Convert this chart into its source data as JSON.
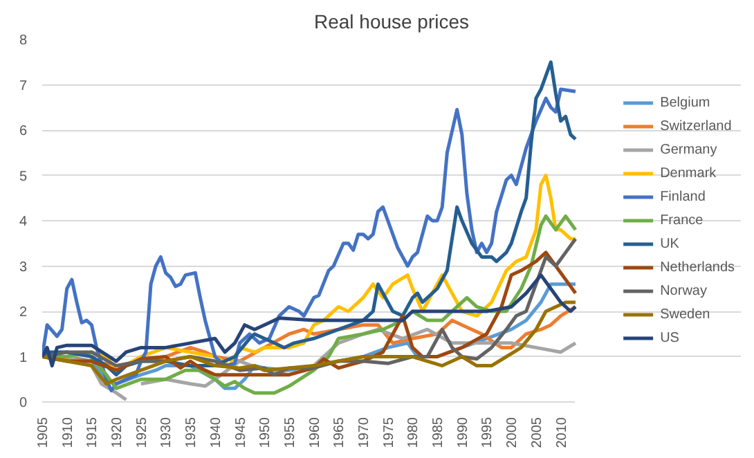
{
  "chart_data": {
    "type": "line",
    "title": "Real house prices",
    "xlim": [
      1905,
      2013
    ],
    "ylim": [
      0,
      8
    ],
    "xticks": [
      1905,
      1910,
      1915,
      1920,
      1925,
      1930,
      1935,
      1940,
      1945,
      1950,
      1955,
      1960,
      1965,
      1970,
      1975,
      1980,
      1985,
      1990,
      1995,
      2000,
      2005,
      2010
    ],
    "yticks": [
      0,
      1,
      2,
      3,
      4,
      5,
      6,
      7,
      8
    ],
    "grid": "y",
    "legend": "right",
    "marker": "none",
    "line_style": "solid",
    "series": [
      {
        "name": "Belgium",
        "color": "#5b9bd5",
        "x": [
          1905,
          1910,
          1915,
          1918,
          1920,
          1925,
          1928,
          1930,
          1935,
          1940,
          1942,
          1944,
          1946,
          1948,
          1950,
          1955,
          1960,
          1965,
          1970,
          1975,
          1979,
          1981,
          1985,
          1990,
          1995,
          2000,
          2003,
          2006,
          2008,
          2010,
          2013
        ],
        "values": [
          1.0,
          1.0,
          0.9,
          0.5,
          0.4,
          0.6,
          0.7,
          0.8,
          0.8,
          0.5,
          0.3,
          0.3,
          0.5,
          0.8,
          0.75,
          0.7,
          0.8,
          0.9,
          1.0,
          1.2,
          1.3,
          1.0,
          1.0,
          1.2,
          1.4,
          1.6,
          1.8,
          2.2,
          2.6,
          2.6,
          2.6
        ]
      },
      {
        "name": "Switzerland",
        "color": "#ed7d31",
        "x": [
          1905,
          1910,
          1915,
          1920,
          1925,
          1930,
          1935,
          1938,
          1940,
          1945,
          1950,
          1955,
          1958,
          1960,
          1965,
          1970,
          1973,
          1976,
          1980,
          1985,
          1988,
          1990,
          1994,
          1998,
          2000,
          2003,
          2006,
          2008,
          2010,
          2013
        ],
        "values": [
          1.0,
          0.95,
          0.9,
          0.8,
          0.9,
          1.0,
          1.2,
          1.1,
          1.0,
          0.9,
          1.2,
          1.5,
          1.6,
          1.5,
          1.6,
          1.7,
          1.7,
          1.3,
          1.4,
          1.5,
          1.8,
          1.7,
          1.5,
          1.2,
          1.2,
          1.5,
          1.6,
          1.7,
          1.9,
          2.1
        ]
      },
      {
        "name": "Germany",
        "color": "#a5a5a5",
        "x": [
          1905,
          1910,
          1915,
          1917,
          1920,
          1922,
          1924,
          1925,
          1930,
          1935,
          1938,
          1940,
          1945,
          1950,
          1955,
          1960,
          1965,
          1970,
          1973,
          1978,
          1983,
          1988,
          1993,
          2000,
          2005,
          2010,
          2013
        ],
        "values": [
          1.0,
          1.0,
          0.8,
          0.4,
          0.2,
          0.05,
          null,
          0.4,
          0.5,
          0.4,
          0.35,
          0.5,
          0.9,
          0.7,
          0.6,
          0.8,
          1.3,
          1.5,
          1.6,
          1.4,
          1.6,
          1.3,
          1.3,
          1.3,
          1.2,
          1.1,
          1.3
        ]
      },
      {
        "name": "Denmark",
        "color": "#ffc000",
        "x": [
          1905,
          1910,
          1915,
          1918,
          1920,
          1925,
          1930,
          1935,
          1940,
          1943,
          1945,
          1948,
          1950,
          1955,
          1958,
          1960,
          1962,
          1965,
          1967,
          1970,
          1972,
          1974,
          1976,
          1979,
          1980,
          1982,
          1984,
          1986,
          1988,
          1990,
          1993,
          1996,
          1999,
          2001,
          2003,
          2005,
          2006,
          2007,
          2008,
          2009,
          2010,
          2012,
          2013
        ],
        "values": [
          1.0,
          1.0,
          1.1,
          1.0,
          0.7,
          1.0,
          1.2,
          1.1,
          1.0,
          0.8,
          1.2,
          1.1,
          1.2,
          1.2,
          1.3,
          1.7,
          1.8,
          2.1,
          2.0,
          2.3,
          2.6,
          2.3,
          2.6,
          2.8,
          2.5,
          2.0,
          2.4,
          2.8,
          2.4,
          2.0,
          1.9,
          2.2,
          2.9,
          3.1,
          3.2,
          3.8,
          4.8,
          5.0,
          4.5,
          3.8,
          3.8,
          3.6,
          3.6
        ]
      },
      {
        "name": "Finland",
        "color": "#4472c4",
        "x": [
          1905,
          1906,
          1908,
          1909,
          1910,
          1911,
          1912,
          1913,
          1914,
          1915,
          1916,
          1918,
          1919,
          1920,
          1922,
          1924,
          1925,
          1926,
          1927,
          1928,
          1929,
          1930,
          1931,
          1932,
          1933,
          1934,
          1936,
          1937,
          1938,
          1939,
          1940,
          1942,
          1944,
          1945,
          1947,
          1949,
          1951,
          1953,
          1955,
          1957,
          1958,
          1960,
          1961,
          1963,
          1964,
          1966,
          1967,
          1968,
          1969,
          1970,
          1971,
          1972,
          1973,
          1974,
          1975,
          1977,
          1979,
          1980,
          1981,
          1983,
          1984,
          1985,
          1986,
          1987,
          1989,
          1990,
          1991,
          1992,
          1993,
          1994,
          1995,
          1996,
          1997,
          1999,
          2000,
          2001,
          2003,
          2005,
          2007,
          2008,
          2009,
          2010,
          2013
        ],
        "values": [
          1.0,
          1.7,
          1.45,
          1.6,
          2.5,
          2.7,
          2.2,
          1.75,
          1.8,
          1.7,
          1.2,
          0.5,
          0.25,
          0.4,
          0.5,
          0.6,
          0.9,
          1.1,
          2.6,
          3.0,
          3.2,
          2.85,
          2.75,
          2.55,
          2.6,
          2.8,
          2.85,
          2.3,
          1.8,
          1.4,
          1.0,
          0.8,
          0.85,
          1.3,
          1.5,
          1.3,
          1.4,
          1.9,
          2.1,
          2.0,
          1.9,
          2.3,
          2.35,
          2.9,
          3.0,
          3.5,
          3.5,
          3.35,
          3.7,
          3.7,
          3.6,
          3.7,
          4.2,
          4.3,
          4.0,
          3.4,
          3.0,
          3.2,
          3.3,
          4.1,
          4.0,
          4.0,
          4.3,
          5.5,
          6.45,
          5.9,
          4.6,
          3.8,
          3.3,
          3.5,
          3.3,
          3.5,
          4.2,
          4.9,
          5.0,
          4.8,
          5.6,
          6.2,
          6.7,
          6.5,
          6.4,
          6.9,
          6.85
        ]
      },
      {
        "name": "France",
        "color": "#70ad47",
        "x": [
          1905,
          1910,
          1914,
          1918,
          1920,
          1925,
          1930,
          1934,
          1937,
          1940,
          1942,
          1944,
          1946,
          1948,
          1952,
          1955,
          1960,
          1963,
          1965,
          1970,
          1974,
          1978,
          1980,
          1983,
          1986,
          1989,
          1991,
          1993,
          1996,
          1999,
          2002,
          2004,
          2006,
          2007,
          2009,
          2011,
          2013
        ],
        "values": [
          1.0,
          1.0,
          1.1,
          0.6,
          0.3,
          0.5,
          0.5,
          0.7,
          0.7,
          0.5,
          0.35,
          0.45,
          0.3,
          0.2,
          0.2,
          0.35,
          0.7,
          1.0,
          1.4,
          1.5,
          1.6,
          1.8,
          2.0,
          1.8,
          1.8,
          2.1,
          2.3,
          2.1,
          2.0,
          2.0,
          2.5,
          3.0,
          3.9,
          4.1,
          3.8,
          4.1,
          3.8
        ]
      },
      {
        "name": "UK",
        "color": "#255e91",
        "x": [
          1905,
          1906,
          1910,
          1915,
          1918,
          1920,
          1922,
          1925,
          1930,
          1935,
          1940,
          1944,
          1947,
          1948,
          1950,
          1952,
          1954,
          1956,
          1960,
          1965,
          1970,
          1972,
          1973,
          1974,
          1976,
          1978,
          1980,
          1981,
          1982,
          1985,
          1987,
          1988,
          1989,
          1990,
          1992,
          1994,
          1996,
          1997,
          1999,
          2000,
          2002,
          2003,
          2004,
          2005,
          2006,
          2007,
          2008,
          2009,
          2010,
          2011,
          2012,
          2013
        ],
        "values": [
          1.0,
          1.1,
          1.1,
          1.0,
          0.8,
          0.6,
          0.8,
          0.9,
          0.9,
          0.8,
          0.8,
          1.0,
          1.4,
          1.5,
          1.4,
          1.3,
          1.2,
          1.3,
          1.4,
          1.6,
          1.8,
          2.0,
          2.6,
          2.4,
          2.0,
          1.9,
          2.3,
          2.4,
          2.2,
          2.5,
          2.9,
          3.6,
          4.3,
          4.0,
          3.5,
          3.2,
          3.2,
          3.1,
          3.3,
          3.5,
          4.2,
          4.5,
          5.7,
          6.7,
          6.9,
          7.2,
          7.5,
          6.8,
          6.2,
          6.3,
          5.9,
          5.8
        ]
      },
      {
        "name": "Netherlands",
        "color": "#9e480e",
        "x": [
          1905,
          1910,
          1915,
          1920,
          1925,
          1930,
          1933,
          1935,
          1937,
          1940,
          1945,
          1950,
          1955,
          1960,
          1962,
          1965,
          1970,
          1974,
          1976,
          1978,
          1980,
          1982,
          1985,
          1990,
          1995,
          1998,
          2000,
          2002,
          2005,
          2007,
          2009,
          2011,
          2013
        ],
        "values": [
          1.0,
          0.9,
          0.9,
          0.7,
          0.95,
          1.0,
          0.75,
          0.9,
          0.75,
          0.6,
          0.6,
          0.6,
          0.6,
          0.75,
          0.95,
          0.75,
          0.9,
          1.1,
          1.5,
          1.9,
          1.2,
          1.0,
          1.0,
          1.2,
          1.5,
          2.1,
          2.8,
          2.9,
          3.1,
          3.3,
          3.0,
          2.7,
          2.4
        ]
      },
      {
        "name": "Norway",
        "color": "#636363",
        "x": [
          1905,
          1910,
          1915,
          1920,
          1925,
          1930,
          1935,
          1940,
          1945,
          1950,
          1952,
          1955,
          1960,
          1965,
          1970,
          1975,
          1980,
          1983,
          1986,
          1988,
          1990,
          1993,
          1996,
          1999,
          2001,
          2003,
          2005,
          2007,
          2009,
          2011,
          2013
        ],
        "values": [
          1.0,
          1.1,
          1.1,
          0.8,
          0.9,
          0.9,
          1.0,
          0.9,
          0.7,
          0.75,
          0.6,
          0.75,
          0.75,
          0.9,
          0.9,
          0.85,
          1.0,
          1.0,
          1.6,
          1.2,
          1.0,
          0.95,
          1.2,
          1.6,
          1.9,
          2.0,
          2.6,
          3.2,
          3.0,
          3.3,
          3.6
        ]
      },
      {
        "name": "Sweden",
        "color": "#997300",
        "x": [
          1905,
          1910,
          1915,
          1918,
          1920,
          1925,
          1930,
          1935,
          1940,
          1945,
          1948,
          1950,
          1955,
          1960,
          1965,
          1970,
          1975,
          1980,
          1983,
          1986,
          1990,
          1993,
          1996,
          1999,
          2002,
          2005,
          2007,
          2009,
          2011,
          2013
        ],
        "values": [
          1.0,
          0.9,
          0.8,
          0.4,
          0.5,
          0.7,
          0.9,
          1.0,
          0.8,
          0.75,
          0.8,
          0.7,
          0.75,
          0.8,
          0.9,
          1.0,
          1.0,
          1.0,
          0.9,
          0.8,
          1.0,
          0.8,
          0.8,
          1.0,
          1.2,
          1.6,
          2.0,
          2.1,
          2.2,
          2.2
        ]
      },
      {
        "name": "US",
        "color": "#264478",
        "x": [
          1905,
          1906,
          1907,
          1908,
          1910,
          1915,
          1920,
          1922,
          1925,
          1930,
          1935,
          1940,
          1942,
          1944,
          1946,
          1948,
          1950,
          1953,
          1960,
          1970,
          1975,
          1978,
          1980,
          1985,
          1990,
          1995,
          2000,
          2003,
          2006,
          2008,
          2010,
          2012,
          2013
        ],
        "values": [
          1.0,
          1.2,
          0.8,
          1.2,
          1.25,
          1.25,
          0.9,
          1.1,
          1.2,
          1.2,
          1.3,
          1.4,
          1.1,
          1.3,
          1.7,
          1.6,
          1.7,
          1.85,
          1.8,
          1.8,
          1.8,
          1.8,
          2.0,
          2.0,
          2.0,
          2.0,
          2.1,
          2.4,
          2.8,
          2.5,
          2.2,
          2.0,
          2.1
        ]
      }
    ]
  }
}
